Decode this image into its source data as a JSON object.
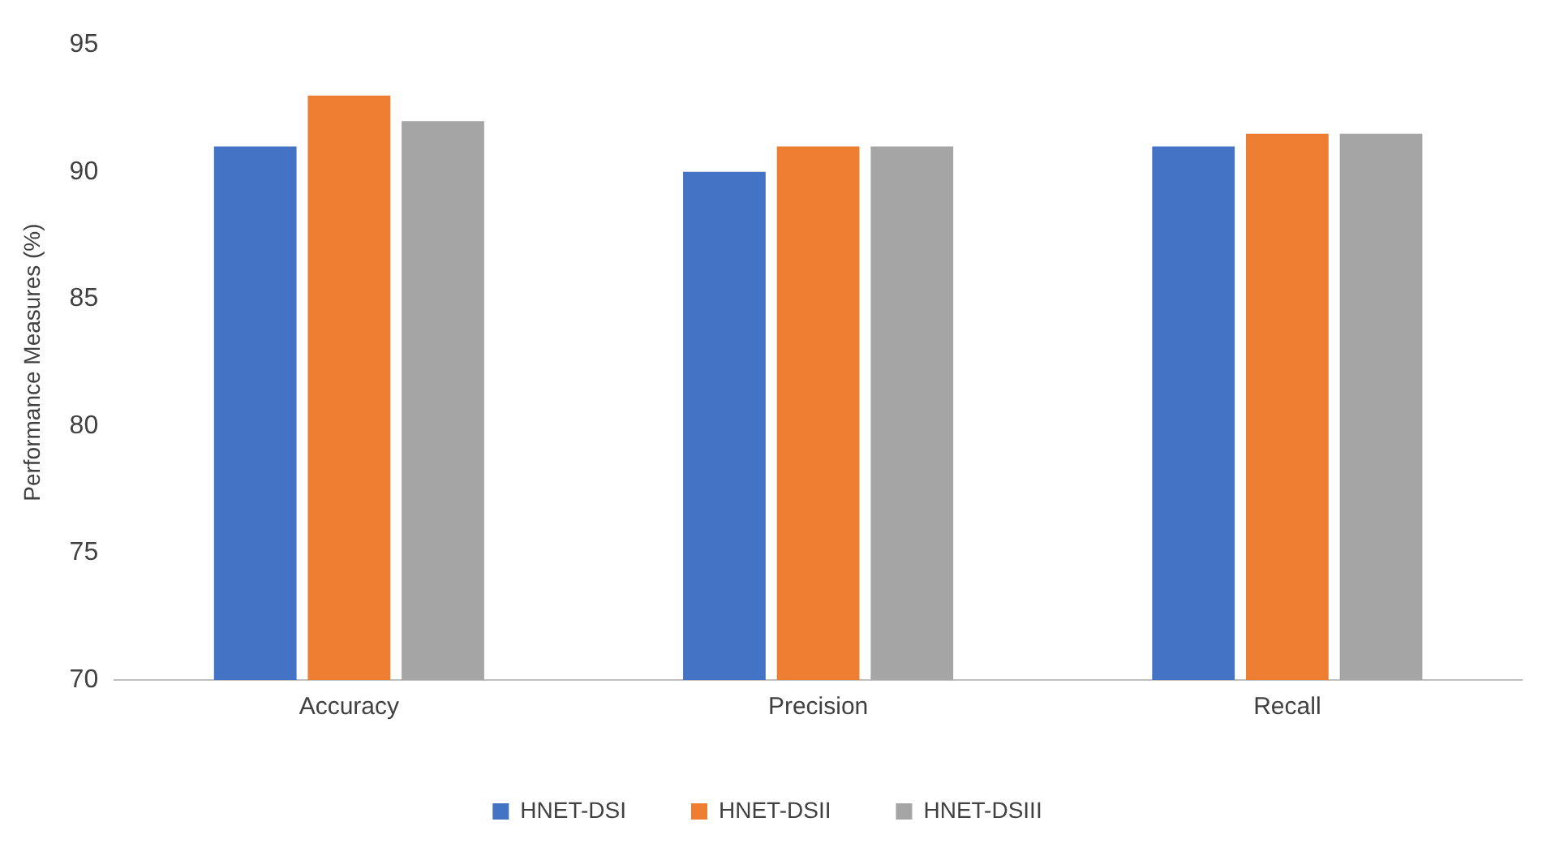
{
  "chart_data": {
    "type": "bar",
    "ylabel": "Performance Measures (%)",
    "categories": [
      "Accuracy",
      "Precision",
      "Recall"
    ],
    "series": [
      {
        "name": "HNET-DSI",
        "color": "#4472c4",
        "values": [
          91,
          90,
          91
        ]
      },
      {
        "name": "HNET-DSII",
        "color": "#ed7d31",
        "values": [
          93,
          91,
          91.5
        ]
      },
      {
        "name": "HNET-DSIII",
        "color": "#a5a5a5",
        "values": [
          92,
          91,
          91.5
        ]
      }
    ],
    "ylim": [
      70,
      95
    ],
    "yticks": [
      70,
      75,
      80,
      85,
      90,
      95
    ],
    "grid": false,
    "legend": "bottom"
  }
}
